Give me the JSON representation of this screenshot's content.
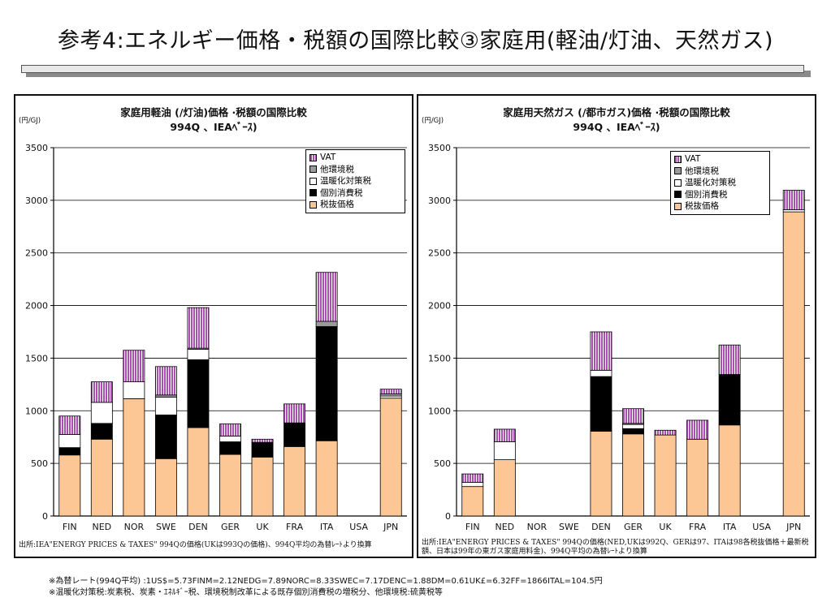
{
  "page": {
    "title": "参考4:エネルギー価格・税額の国際比較③家庭用(軽油/灯油、天然ガス)",
    "footnotes": [
      "※為替レート(994Q平均) :1US$=5.73FINM=2.12NEDG=7.89NORC=8.33SWEC=7.17DENC=1.88DM=0.61UK£=6.32FF=1866ITAL=104.5円",
      "※温暖化対策税:炭素税、炭素・ｴﾈﾙｷﾞｰ税、環境税制改革による既存個別消費税の増税分、他環境税:硫黄税等"
    ]
  },
  "colors": {
    "base": "#fcc795",
    "excise": "#000000",
    "warming": "#ffffff",
    "env": "#9a9a9a",
    "vat": "#a84fb0"
  },
  "legend_labels": [
    "VAT",
    "他環境税",
    "温暖化対策税",
    "個別消費税",
    "税抜価格"
  ],
  "chart_data": [
    {
      "type": "bar",
      "stacked": true,
      "title": "家庭用軽油 (/灯油)価格 ·税額の国際比較",
      "subtitle": "994Q 、IEAﾍﾞｰｽ)",
      "ylabel": "(円/GJ)",
      "ylim": [
        0,
        3500
      ],
      "yticks": [
        0,
        500,
        1000,
        1500,
        2000,
        2500,
        3000,
        3500
      ],
      "grid": true,
      "legend_position": "top-right",
      "categories": [
        "FIN",
        "NED",
        "NOR",
        "SWE",
        "DEN",
        "GER",
        "UK",
        "FRA",
        "ITA",
        "USA",
        "JPN"
      ],
      "series": [
        {
          "name": "税抜価格",
          "values": [
            580,
            730,
            1115,
            545,
            840,
            585,
            560,
            660,
            715,
            0,
            1120
          ]
        },
        {
          "name": "個別消費税",
          "values": [
            70,
            150,
            0,
            415,
            645,
            120,
            140,
            225,
            1085,
            0,
            0
          ]
        },
        {
          "name": "温暖化対策税",
          "values": [
            125,
            200,
            160,
            170,
            100,
            55,
            0,
            0,
            0,
            0,
            20
          ]
        },
        {
          "name": "他環境税",
          "values": [
            0,
            0,
            0,
            20,
            10,
            0,
            0,
            0,
            50,
            0,
            20
          ]
        },
        {
          "name": "VAT",
          "values": [
            175,
            195,
            300,
            270,
            385,
            115,
            30,
            180,
            465,
            0,
            45
          ]
        }
      ],
      "source": "出所:IEA\"ENERGY PRICES & TAXES\" 994Qの価格(UKは993Qの価格)、994Q平均の為替ﾚｰﾄより換算"
    },
    {
      "type": "bar",
      "stacked": true,
      "title": "家庭用天然ガス (/都市ガス)価格 ·税額の国際比較",
      "subtitle": "994Q 、IEAﾍﾞｰｽ)",
      "ylabel": "(円/GJ)",
      "ylim": [
        0,
        3500
      ],
      "yticks": [
        0,
        500,
        1000,
        1500,
        2000,
        2500,
        3000,
        3500
      ],
      "grid": true,
      "legend_position": "top-right",
      "categories": [
        "FIN",
        "NED",
        "NOR",
        "SWE",
        "DEN",
        "GER",
        "UK",
        "FRA",
        "ITA",
        "USA",
        "JPN"
      ],
      "series": [
        {
          "name": "税抜価格",
          "values": [
            280,
            535,
            0,
            0,
            805,
            780,
            770,
            730,
            865,
            0,
            2890
          ]
        },
        {
          "name": "個別消費税",
          "values": [
            0,
            0,
            0,
            0,
            520,
            50,
            0,
            0,
            480,
            0,
            0
          ]
        },
        {
          "name": "温暖化対策税",
          "values": [
            40,
            170,
            0,
            0,
            60,
            40,
            0,
            0,
            0,
            0,
            20
          ]
        },
        {
          "name": "他環境税",
          "values": [
            0,
            0,
            0,
            0,
            0,
            10,
            0,
            0,
            0,
            0,
            0
          ]
        },
        {
          "name": "VAT",
          "values": [
            80,
            120,
            0,
            0,
            365,
            140,
            45,
            180,
            280,
            0,
            185
          ]
        }
      ],
      "source": "出所:IEA\"ENERGY PRICES & TAXES\" 994Qの価格(NED,UKは992Q、GERは97、ITAは98各税抜価格＋最新税額、日本は99年の東ガス家庭用料金)、994Q平均の為替ﾚｰﾄより換算"
    }
  ]
}
